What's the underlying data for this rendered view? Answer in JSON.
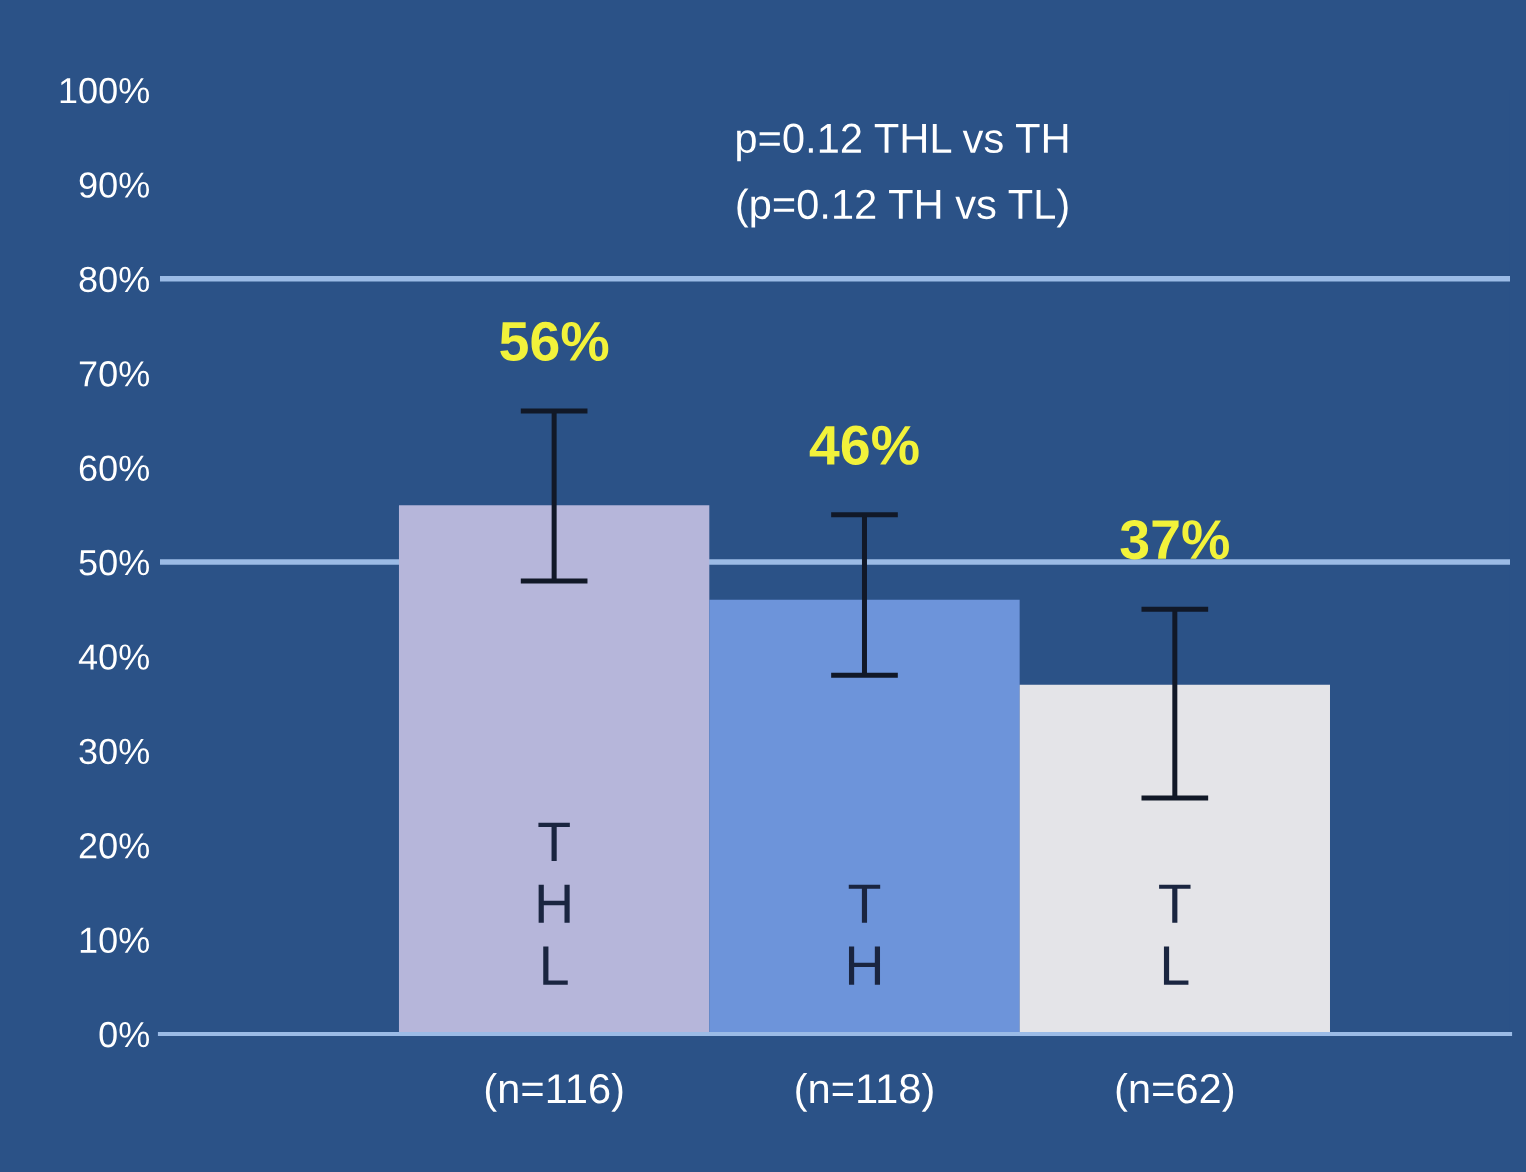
{
  "chart_data": {
    "type": "bar",
    "title": "p=0.12 THL vs TH",
    "subtitle": "(p=0.12 TH vs TL)",
    "categories": [
      "(n=116)",
      "(n=118)",
      "(n=62)"
    ],
    "values": [
      56,
      46,
      37
    ],
    "colors": [
      "#b6b6da",
      "#6d94da",
      "#e4e4e8"
    ],
    "errors": [
      [
        48,
        66
      ],
      [
        38,
        55
      ],
      [
        25,
        45
      ]
    ],
    "value_labels": [
      "56%",
      "46%",
      "37%"
    ],
    "ylim": [
      0,
      100
    ],
    "yticks": [
      {
        "value": 0,
        "label": "0%"
      },
      {
        "value": 10,
        "label": "10%"
      },
      {
        "value": 20,
        "label": "20%"
      },
      {
        "value": 30,
        "label": "30%"
      },
      {
        "value": 40,
        "label": "40%"
      },
      {
        "value": 50,
        "label": "50%"
      },
      {
        "value": 60,
        "label": "60%"
      },
      {
        "value": 70,
        "label": "70%"
      },
      {
        "value": 80,
        "label": "80%"
      },
      {
        "value": 90,
        "label": "90%"
      },
      {
        "value": 100,
        "label": "100%"
      }
    ],
    "ref_lines": [
      {
        "axis": "y",
        "value": 50,
        "color": "#9bbbe6"
      },
      {
        "axis": "y",
        "value": 80,
        "color": "#9bbbe6"
      }
    ],
    "annotations": [
      "T\nH\nL",
      "T\nH",
      "T\nL"
    ],
    "grid": false,
    "legend": false
  }
}
